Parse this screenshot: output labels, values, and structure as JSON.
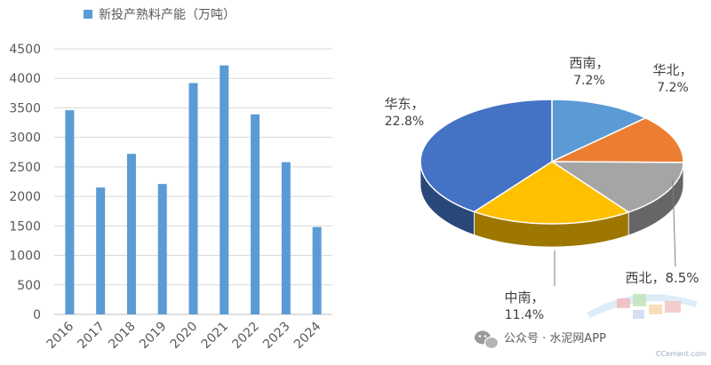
{
  "chart_data": [
    {
      "type": "bar",
      "legend": "新投产熟料产能（万吨）",
      "legend_placement": "top",
      "categories": [
        "2016",
        "2017",
        "2018",
        "2019",
        "2020",
        "2021",
        "2022",
        "2023",
        "2024"
      ],
      "series": [
        {
          "name": "新投产熟料产能（万吨）",
          "values": [
            3460,
            2150,
            2720,
            2210,
            3920,
            4220,
            3390,
            2580,
            1480
          ]
        }
      ],
      "yticks": [
        "0",
        "500",
        "1000",
        "1500",
        "2000",
        "2500",
        "3000",
        "3500",
        "4000",
        "4500"
      ],
      "ylim": [
        0,
        4500
      ],
      "grid": true,
      "bar_color": "#5b9bd5"
    },
    {
      "type": "pie",
      "style": "3d",
      "slices": [
        {
          "name": "西南",
          "pct": "7.2%",
          "value": 7.2,
          "color": "#5b9bd5"
        },
        {
          "name": "华北",
          "pct": "7.2%",
          "value": 7.2,
          "color": "#ed7d31"
        },
        {
          "name": "西北",
          "pct": "8.5%",
          "value": 8.5,
          "color": "#a5a5a5"
        },
        {
          "name": "中南",
          "pct": "11.4%",
          "value": 11.4,
          "color": "#ffc000"
        },
        {
          "name": "华东",
          "pct": "22.8%",
          "value": 22.8,
          "color": "#4472c4"
        }
      ]
    }
  ],
  "watermark": {
    "text": "公众号 · 水泥网APP",
    "logo_text": "CCement.com"
  }
}
